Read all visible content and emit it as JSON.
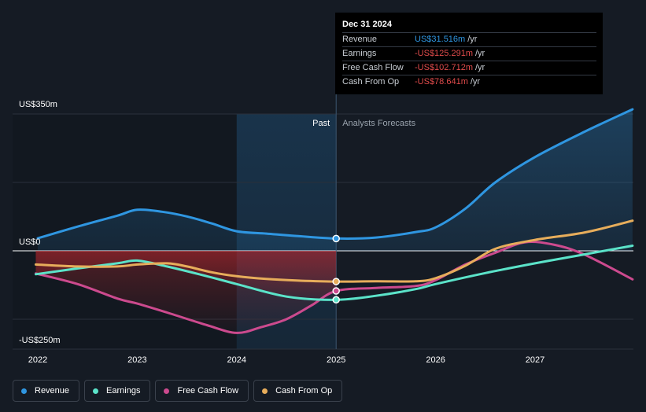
{
  "chart_data": {
    "type": "line",
    "x_ticks": [
      "2022",
      "2023",
      "2024",
      "2025",
      "2026",
      "2027"
    ],
    "y_labels": [
      {
        "label": "US$350m",
        "value": 350
      },
      {
        "label": "US$0",
        "value": 0
      },
      {
        "label": "-US$250m",
        "value": -250
      }
    ],
    "ylim": [
      -250,
      350
    ],
    "xlim": [
      2021.75,
      2027.98
    ],
    "divider_x": 2025.0,
    "highlight_start": 2024.0,
    "past_label": "Past",
    "forecast_label": "Analysts Forecasts",
    "series": [
      {
        "name": "Revenue",
        "color": "#2f96e1",
        "points": [
          [
            2022.0,
            32
          ],
          [
            2022.4,
            62
          ],
          [
            2022.8,
            90
          ],
          [
            2023.0,
            105
          ],
          [
            2023.25,
            100
          ],
          [
            2023.5,
            88
          ],
          [
            2023.75,
            70
          ],
          [
            2024.0,
            50
          ],
          [
            2024.3,
            44
          ],
          [
            2024.6,
            38
          ],
          [
            2025.0,
            31.5
          ],
          [
            2025.4,
            34
          ],
          [
            2025.8,
            48
          ],
          [
            2026.0,
            60
          ],
          [
            2026.3,
            108
          ],
          [
            2026.6,
            175
          ],
          [
            2027.0,
            240
          ],
          [
            2027.5,
            305
          ],
          [
            2027.98,
            362
          ]
        ]
      },
      {
        "name": "Earnings",
        "color": "#5be3c9",
        "points": [
          [
            2021.98,
            -60
          ],
          [
            2022.4,
            -45
          ],
          [
            2022.8,
            -32
          ],
          [
            2023.0,
            -25
          ],
          [
            2023.3,
            -40
          ],
          [
            2023.7,
            -65
          ],
          [
            2024.0,
            -85
          ],
          [
            2024.5,
            -117
          ],
          [
            2025.0,
            -125.3
          ],
          [
            2025.4,
            -115
          ],
          [
            2025.8,
            -98
          ],
          [
            2026.0,
            -85
          ],
          [
            2026.5,
            -57
          ],
          [
            2027.0,
            -32
          ],
          [
            2027.5,
            -9
          ],
          [
            2027.98,
            13
          ]
        ]
      },
      {
        "name": "Free Cash Flow",
        "color": "#cc4a8e",
        "points": [
          [
            2021.98,
            -58
          ],
          [
            2022.4,
            -85
          ],
          [
            2022.8,
            -122
          ],
          [
            2023.0,
            -135
          ],
          [
            2023.3,
            -158
          ],
          [
            2023.7,
            -190
          ],
          [
            2024.0,
            -210
          ],
          [
            2024.25,
            -195
          ],
          [
            2024.5,
            -175
          ],
          [
            2024.75,
            -140
          ],
          [
            2025.0,
            -102.7
          ],
          [
            2025.4,
            -95
          ],
          [
            2025.8,
            -90
          ],
          [
            2026.0,
            -75
          ],
          [
            2026.3,
            -35
          ],
          [
            2026.6,
            -5
          ],
          [
            2026.9,
            22
          ],
          [
            2027.2,
            15
          ],
          [
            2027.5,
            -10
          ],
          [
            2027.98,
            -73
          ]
        ]
      },
      {
        "name": "Cash From Op",
        "color": "#e7ad5b",
        "points": [
          [
            2021.98,
            -35
          ],
          [
            2022.4,
            -40
          ],
          [
            2022.8,
            -40
          ],
          [
            2023.0,
            -35
          ],
          [
            2023.3,
            -32
          ],
          [
            2023.5,
            -40
          ],
          [
            2023.75,
            -55
          ],
          [
            2024.0,
            -65
          ],
          [
            2024.3,
            -72
          ],
          [
            2024.6,
            -76
          ],
          [
            2025.0,
            -78.6
          ],
          [
            2025.4,
            -78
          ],
          [
            2025.8,
            -78
          ],
          [
            2026.0,
            -70
          ],
          [
            2026.3,
            -38
          ],
          [
            2026.6,
            5
          ],
          [
            2027.0,
            28
          ],
          [
            2027.5,
            47
          ],
          [
            2027.98,
            77
          ]
        ]
      }
    ],
    "markers": [
      {
        "series": "Revenue",
        "x": 2025.0,
        "y": 31.5
      },
      {
        "series": "Cash From Op",
        "x": 2025.0,
        "y": -78.6
      },
      {
        "series": "Free Cash Flow",
        "x": 2025.0,
        "y": -102.7
      },
      {
        "series": "Earnings",
        "x": 2025.0,
        "y": -125.3
      }
    ]
  },
  "tooltip": {
    "date": "Dec 31 2024",
    "rows": [
      {
        "label": "Revenue",
        "value": "US$31.516m",
        "unit": "/yr",
        "color": "#2f96e1"
      },
      {
        "label": "Earnings",
        "value": "-US$125.291m",
        "unit": "/yr",
        "color": "#e04b4b"
      },
      {
        "label": "Free Cash Flow",
        "value": "-US$102.712m",
        "unit": "/yr",
        "color": "#e04b4b"
      },
      {
        "label": "Cash From Op",
        "value": "-US$78.641m",
        "unit": "/yr",
        "color": "#e04b4b"
      }
    ]
  },
  "legend": [
    {
      "label": "Revenue",
      "color": "#2f96e1"
    },
    {
      "label": "Earnings",
      "color": "#5be3c9"
    },
    {
      "label": "Free Cash Flow",
      "color": "#cc4a8e"
    },
    {
      "label": "Cash From Op",
      "color": "#e7ad5b"
    }
  ]
}
